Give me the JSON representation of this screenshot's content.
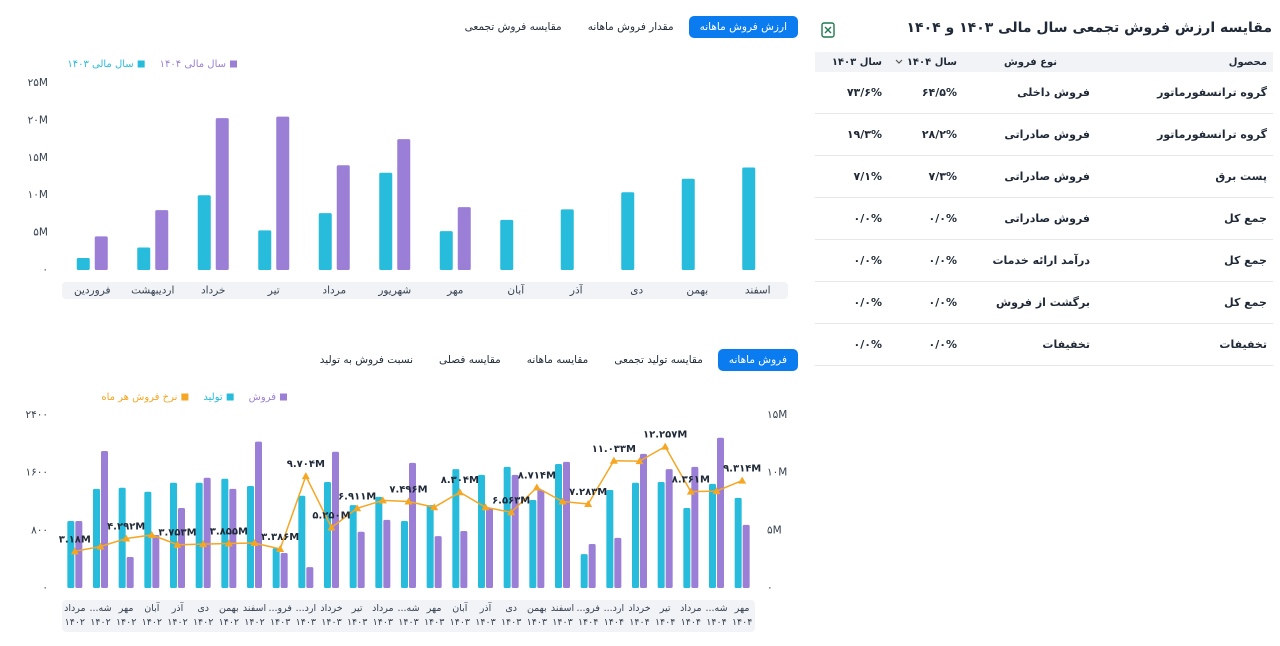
{
  "table": {
    "title": "مقایسه ارزش فروش تجمعی سال مالی ۱۴۰۳ و ۱۴۰۴",
    "columns": [
      "محصول",
      "نوع فروش",
      "سال ۱۴۰۴",
      "سال ۱۴۰۳"
    ],
    "rows": [
      [
        "گروه ترانسفورماتور",
        "فروش داخلی",
        "۶۴/۵%",
        "۷۳/۶%"
      ],
      [
        "گروه ترانسفورماتور",
        "فروش صادراتی",
        "۲۸/۲%",
        "۱۹/۳%"
      ],
      [
        "پست برق",
        "فروش صادراتی",
        "۷/۳%",
        "۷/۱%"
      ],
      [
        "جمع کل",
        "فروش صادراتی",
        "۰/۰%",
        "۰/۰%"
      ],
      [
        "جمع کل",
        "درآمد ارائه خدمات",
        "۰/۰%",
        "۰/۰%"
      ],
      [
        "جمع کل",
        "برگشت از فروش",
        "۰/۰%",
        "۰/۰%"
      ],
      [
        "تخفیفات",
        "تخفیفات",
        "۰/۰%",
        "۰/۰%"
      ]
    ]
  },
  "tabs": {
    "top": [
      "ارزش فروش ماهانه",
      "مقدار فروش ماهانه",
      "مقایسه فروش تجمعی"
    ],
    "bottom": [
      "فروش ماهانه",
      "مقایسه تولید تجمعی",
      "مقایسه ماهانه",
      "مقایسه فصلی",
      "نسبت فروش به تولید"
    ]
  },
  "chart_data": [
    {
      "type": "bar",
      "categories": [
        "فروردین",
        "اردیبهشت",
        "خرداد",
        "تیر",
        "مرداد",
        "شهریور",
        "مهر",
        "آبان",
        "آذر",
        "دی",
        "بهمن",
        "اسفند"
      ],
      "series": [
        {
          "name": "سال مالی ۱۴۰۴",
          "color": "#9b7fd6",
          "values": [
            4500000,
            8000000,
            20300000,
            20500000,
            14000000,
            17500000,
            8400000,
            null,
            null,
            null,
            null,
            null
          ]
        },
        {
          "name": "سال مالی ۱۴۰۳",
          "color": "#27bcdc",
          "values": [
            1600000,
            3000000,
            10000000,
            5300000,
            7600000,
            13000000,
            5200000,
            6700000,
            8100000,
            10400000,
            12200000,
            13700000
          ]
        }
      ],
      "ylim": [
        0,
        25000000
      ],
      "yticks": [
        {
          "value": 0,
          "label": "۰"
        },
        {
          "value": 5000000,
          "label": "۵M"
        },
        {
          "value": 10000000,
          "label": "۱۰M"
        },
        {
          "value": 15000000,
          "label": "۱۵M"
        },
        {
          "value": 20000000,
          "label": "۲۰M"
        },
        {
          "value": 25000000,
          "label": "۲۵M"
        }
      ],
      "grid": false
    },
    {
      "type": "bar",
      "categories": [
        "مرداد ۱۴۰۲",
        "شه... ۱۴۰۲",
        "مهر ۱۴۰۲",
        "آبان ۱۴۰۲",
        "آذر ۱۴۰۲",
        "دی ۱۴۰۲",
        "بهمن ۱۴۰۲",
        "اسفند ۱۴۰۲",
        "فرو... ۱۴۰۳",
        "ارد... ۱۴۰۳",
        "خرداد ۱۴۰۳",
        "تیر ۱۴۰۳",
        "مرداد ۱۴۰۳",
        "شه... ۱۴۰۳",
        "مهر ۱۴۰۳",
        "آبان ۱۴۰۳",
        "آذر ۱۴۰۳",
        "دی ۱۴۰۳",
        "بهمن ۱۴۰۳",
        "اسفند ۱۴۰۳",
        "فرو... ۱۴۰۴",
        "ارد... ۱۴۰۴",
        "خرداد ۱۴۰۴",
        "تیر ۱۴۰۴",
        "مرداد ۱۴۰۴",
        "شه... ۱۴۰۴",
        "مهر ۱۴۰۴"
      ],
      "series": [
        {
          "name": "فروش",
          "color": "#9b7fd6",
          "type": "bar",
          "values": [
            930,
            1900,
            430,
            735,
            1110,
            1530,
            1375,
            2030,
            485,
            290,
            1890,
            780,
            945,
            1735,
            720,
            790,
            1110,
            1570,
            1360,
            1750,
            610,
            695,
            1860,
            1650,
            1680,
            2085,
            875
          ]
        },
        {
          "name": "تولید",
          "color": "#27bcdc",
          "type": "bar",
          "values": [
            930,
            1375,
            1390,
            1335,
            1460,
            1460,
            1515,
            1415,
            555,
            1280,
            1470,
            1150,
            1265,
            930,
            1150,
            1650,
            1570,
            1680,
            1220,
            1720,
            470,
            1360,
            1460,
            1470,
            1110,
            1445,
            1250
          ]
        },
        {
          "name": "نرخ فروش هر ماه",
          "color": "#f5a623",
          "type": "line",
          "axis": "y2",
          "values": [
            3180000,
            3600000,
            4292000,
            4600000,
            3753000,
            3800000,
            3855000,
            3900000,
            3386000,
            9704000,
            5250000,
            6911000,
            7600000,
            7496000,
            7000000,
            8304000,
            7000000,
            6563000,
            8714000,
            7500000,
            7283000,
            11033000,
            11000000,
            12257000,
            8361000,
            8400000,
            9314000
          ],
          "value_labels": [
            "۳.۱۸M",
            null,
            "۴.۲۹۲M",
            null,
            "۳.۷۵۳M",
            null,
            "۳.۸۵۵M",
            null,
            "۳.۳۸۶M",
            "۹.۷۰۴M",
            "۵.۲۵۰M",
            "۶.۹۱۱M",
            null,
            "۷.۴۹۶M",
            null,
            "۸.۳۰۴M",
            null,
            "۶.۵۶۳M",
            "۸.۷۱۴M",
            null,
            "۷.۲۸۳M",
            "۱۱.۰۳۳M",
            null,
            "۱۲.۲۵۷M",
            "۸.۳۶۱M",
            null,
            "۹.۳۱۴M"
          ]
        }
      ],
      "ylim": [
        0,
        2400
      ],
      "yticks": [
        {
          "value": 0,
          "label": "۰"
        },
        {
          "value": 800,
          "label": "۸۰۰"
        },
        {
          "value": 1600,
          "label": "۱۶۰۰"
        },
        {
          "value": 2400,
          "label": "۲۴۰۰"
        }
      ],
      "y2lim": [
        0,
        15000000
      ],
      "y2ticks": [
        {
          "value": 0,
          "label": "۰"
        },
        {
          "value": 5000000,
          "label": "۵M"
        },
        {
          "value": 10000000,
          "label": "۱۰M"
        },
        {
          "value": 15000000,
          "label": "۱۵M"
        }
      ],
      "grid": false
    }
  ]
}
